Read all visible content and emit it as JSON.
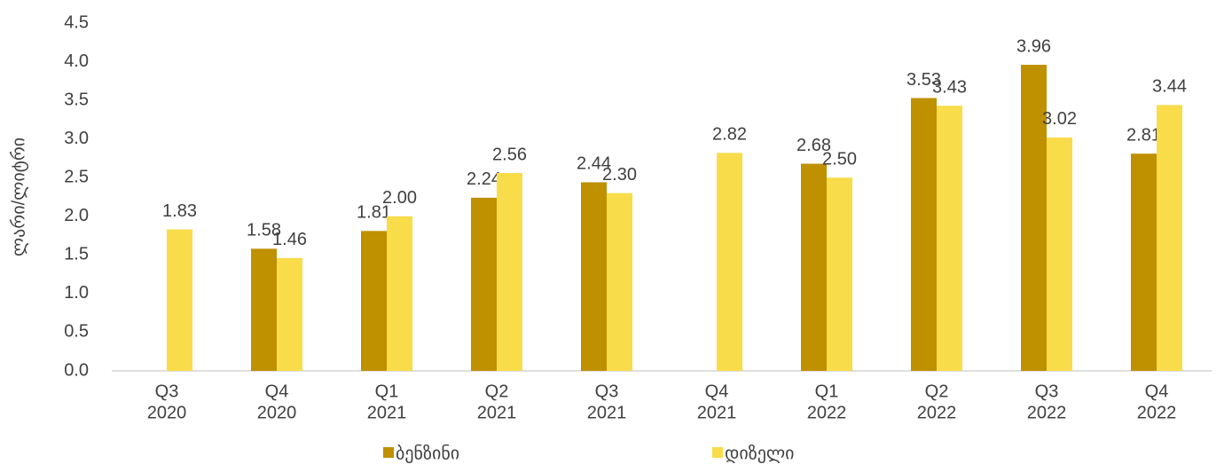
{
  "chart_data": {
    "type": "bar",
    "y_label": "ლარი/ლიტრი",
    "categories": [
      [
        "Q3",
        "2020"
      ],
      [
        "Q4",
        "2020"
      ],
      [
        "Q1",
        "2021"
      ],
      [
        "Q2",
        "2021"
      ],
      [
        "Q3",
        "2021"
      ],
      [
        "Q4",
        "2021"
      ],
      [
        "Q1",
        "2022"
      ],
      [
        "Q2",
        "2022"
      ],
      [
        "Q3",
        "2022"
      ],
      [
        "Q4",
        "2022"
      ]
    ],
    "series": [
      {
        "name": "ბენზინი",
        "color": "#bf9000",
        "values": [
          null,
          1.58,
          1.81,
          2.24,
          2.44,
          null,
          2.68,
          3.53,
          3.96,
          2.81
        ],
        "value_labels": [
          null,
          "1.58",
          "1.81",
          "2.24",
          "2.44",
          null,
          "2.68",
          "3.53",
          "3.96",
          "2.81"
        ]
      },
      {
        "name": "დიზელი",
        "color": "#f9dc4a",
        "values": [
          1.83,
          1.46,
          2.0,
          2.56,
          2.3,
          2.82,
          2.5,
          3.43,
          3.02,
          3.44
        ],
        "value_labels": [
          "1.83",
          "1.46",
          "2.00",
          "2.56",
          "2.30",
          "2.82",
          "2.50",
          "3.43",
          "3.02",
          "3.44"
        ]
      }
    ],
    "ylim": [
      0,
      4.5
    ],
    "yticks": [
      {
        "value": 0,
        "label": "0.0"
      },
      {
        "value": 0.5,
        "label": "0.5"
      },
      {
        "value": 1,
        "label": "1.0"
      },
      {
        "value": 1.5,
        "label": "1.5"
      },
      {
        "value": 2,
        "label": "2.0"
      },
      {
        "value": 2.5,
        "label": "2.5"
      },
      {
        "value": 3,
        "label": "3.0"
      },
      {
        "value": 3.5,
        "label": "3.5"
      },
      {
        "value": 4,
        "label": "4.0"
      },
      {
        "value": 4.5,
        "label": "4.5"
      }
    ],
    "grid": false,
    "legend": "bottom"
  }
}
